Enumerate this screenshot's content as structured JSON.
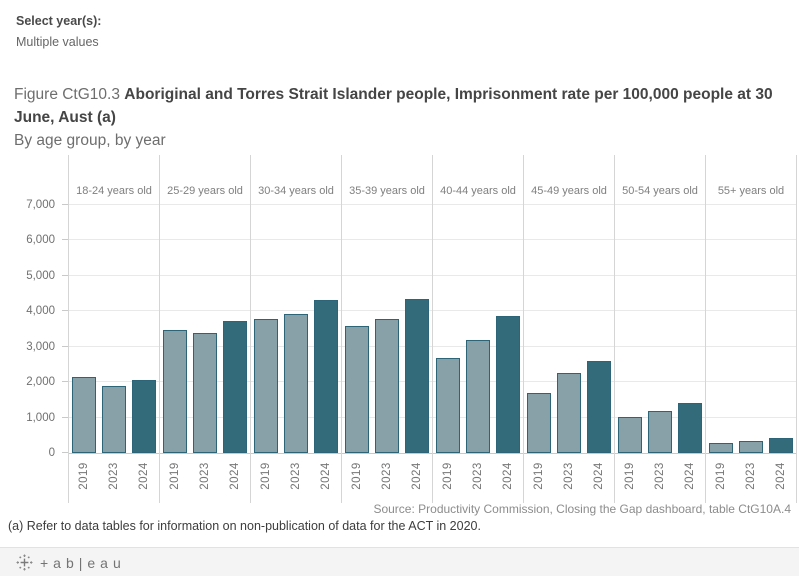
{
  "filter": {
    "label": "Select year(s):",
    "value": "Multiple values"
  },
  "title": {
    "prefix": "Figure CtG10.3 ",
    "main": "Aboriginal and Torres Strait Islander people, Imprisonment rate per 100,000 people at 30 June, Aust (a)",
    "subtitle": "By age group, by year"
  },
  "source": "Source: Productivity Commission, Closing the Gap dashboard, table CtG10A.4",
  "footnote": "(a) Refer to data tables for information on non-publication of data for the ACT in 2020.",
  "branding": {
    "logo_icon": "tableau-sparkle-icon",
    "wordmark": "+ab|eau"
  },
  "colors": {
    "bar_light": "#88A0A8",
    "bar_dark": "#336B7B",
    "bar_border": "#2E6477",
    "grid": "#E9E9E9",
    "panel_divider": "#D5D5D5",
    "axis_line": "#C9C9C9"
  },
  "chart_data": {
    "type": "bar",
    "title": "Figure CtG10.3 Aboriginal and Torres Strait Islander people, Imprisonment rate per 100,000 people at 30 June, Aust (a)",
    "subtitle": "By age group, by year",
    "categories": [
      "18-24 years old",
      "25-29 years old",
      "30-34 years old",
      "35-39 years old",
      "40-44 years old",
      "45-49 years old",
      "50-54 years old",
      "55+ years old"
    ],
    "series": [
      {
        "name": "2019",
        "color_key": "bar_light",
        "values": [
          2150,
          3480,
          3790,
          3580,
          2670,
          1680,
          1020,
          270
        ]
      },
      {
        "name": "2023",
        "color_key": "bar_light",
        "values": [
          1900,
          3390,
          3920,
          3780,
          3200,
          2250,
          1190,
          340
        ]
      },
      {
        "name": "2024",
        "color_key": "bar_dark",
        "values": [
          2050,
          3730,
          4310,
          4340,
          3860,
          2590,
          1400,
          420
        ]
      }
    ],
    "xlabel": "",
    "ylabel": "",
    "ylim": [
      0,
      7000
    ],
    "ytick_interval": 1000,
    "ytick_labels": [
      "0",
      "1,000",
      "2,000",
      "3,000",
      "4,000",
      "5,000",
      "6,000",
      "7,000"
    ],
    "grid": "on",
    "legend": "none"
  }
}
